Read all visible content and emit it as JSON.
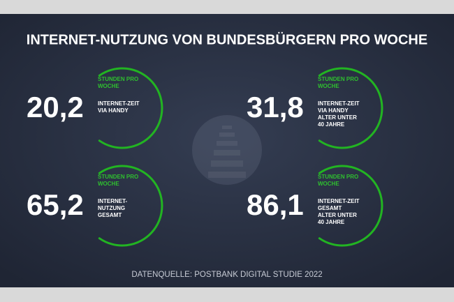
{
  "header": {
    "title": "INTERNET-NUTZUNG VON BUNDESBÜRGERN PRO WOCHE"
  },
  "stats": [
    {
      "value": "20,2",
      "unit": [
        "STUNDEN PRO",
        "WOCHE"
      ],
      "description": [
        "INTERNET-ZEIT",
        "VIA HANDY"
      ]
    },
    {
      "value": "31,8",
      "unit": [
        "STUNDEN PRO",
        "WOCHE"
      ],
      "description": [
        "INTERNET-ZEIT",
        "VIA HANDY",
        "ALTER UNTER",
        "40 JAHRE"
      ]
    },
    {
      "value": "65,2",
      "unit": [
        "STUNDEN PRO",
        "WOCHE"
      ],
      "description": [
        "INTERNET-",
        "NUTZUNG",
        "GESAMT"
      ]
    },
    {
      "value": "86,1",
      "unit": [
        "STUNDEN PRO",
        "WOCHE"
      ],
      "description": [
        "INTERNET-ZEIT",
        "GESAMT",
        "ALTER UNTER",
        "40 JAHRE"
      ]
    }
  ],
  "footer": {
    "source": "DATENQUELLE: POSTBANK DIGITAL STUDIE 2022"
  }
}
